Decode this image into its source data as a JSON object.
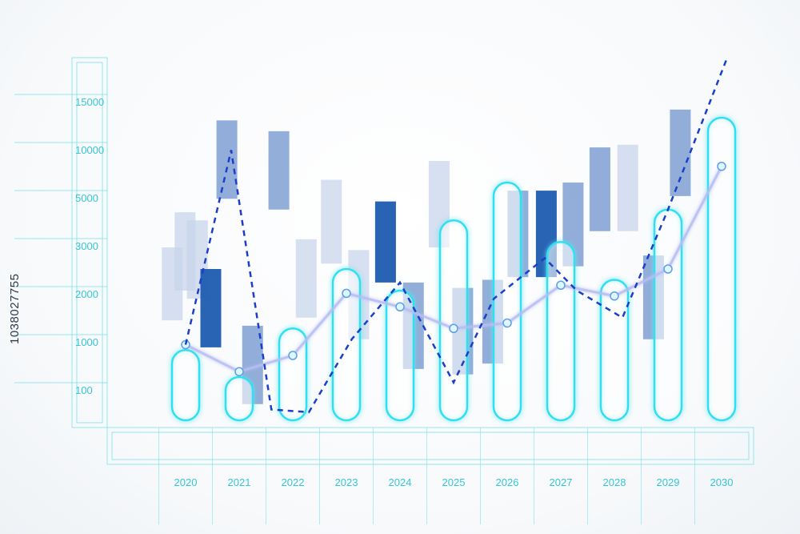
{
  "stock_id": "1038027755",
  "colors": {
    "axis": "#35c6d8",
    "frame": "#7fe3ee",
    "capsule": "#2fe0f0",
    "trend_line": "#b7bdf2",
    "dashed_line": "#1b3fc9",
    "candle_dark": "#1d5bb0",
    "candle_mid": "#6f93cc",
    "candle_light": "#c5d3ea"
  },
  "chart_data": {
    "type": "bar",
    "y_tick_labels": [
      "15000",
      "10000",
      "5000",
      "3000",
      "2000",
      "1000",
      "100"
    ],
    "categories": [
      "2020",
      "2021",
      "2022",
      "2023",
      "2024",
      "2025",
      "2026",
      "2027",
      "2028",
      "2029",
      "2030"
    ],
    "capsule_values": [
      1300,
      800,
      1700,
      2800,
      2400,
      3700,
      4400,
      3300,
      2600,
      3900,
      5600
    ],
    "trend_points": [
      1400,
      900,
      1200,
      2350,
      2100,
      1700,
      1800,
      2500,
      2300,
      2800,
      4700
    ],
    "dashed_points": [
      {
        "x": 2020,
        "y": 1400
      },
      {
        "x": 2020.85,
        "y": 5000
      },
      {
        "x": 2021.6,
        "y": 200
      },
      {
        "x": 2022.3,
        "y": 150
      },
      {
        "x": 2023.1,
        "y": 1500
      },
      {
        "x": 2024.0,
        "y": 2550
      },
      {
        "x": 2025.0,
        "y": 700
      },
      {
        "x": 2025.75,
        "y": 2250
      },
      {
        "x": 2026.7,
        "y": 3000
      },
      {
        "x": 2027.3,
        "y": 2400
      },
      {
        "x": 2028.15,
        "y": 1900
      },
      {
        "x": 2029.0,
        "y": 3900
      },
      {
        "x": 2030.1,
        "y": 6700
      }
    ],
    "candles": [
      {
        "x": 2019.75,
        "low": 1850,
        "high": 3200,
        "shade": "light"
      },
      {
        "x": 2019.99,
        "low": 2400,
        "high": 3850,
        "shade": "light"
      },
      {
        "x": 2020.22,
        "low": 2250,
        "high": 3700,
        "shade": "light"
      },
      {
        "x": 2020.47,
        "low": 1350,
        "high": 2800,
        "shade": "dark"
      },
      {
        "x": 2020.77,
        "low": 4100,
        "high": 5550,
        "shade": "mid"
      },
      {
        "x": 2021.25,
        "low": 300,
        "high": 1750,
        "shade": "mid"
      },
      {
        "x": 2021.74,
        "low": 3900,
        "high": 5350,
        "shade": "mid"
      },
      {
        "x": 2022.25,
        "low": 1900,
        "high": 3350,
        "shade": "light"
      },
      {
        "x": 2022.72,
        "low": 2900,
        "high": 4450,
        "shade": "light"
      },
      {
        "x": 2023.23,
        "low": 1500,
        "high": 3150,
        "shade": "light"
      },
      {
        "x": 2023.73,
        "low": 2550,
        "high": 4050,
        "shade": "dark"
      },
      {
        "x": 2024.25,
        "low": 950,
        "high": 2550,
        "shade": "mid"
      },
      {
        "x": 2024.73,
        "low": 3200,
        "high": 4800,
        "shade": "light"
      },
      {
        "x": 2025.17,
        "low": 850,
        "high": 2450,
        "shade": "mid"
      },
      {
        "x": 2025.73,
        "low": 1050,
        "high": 2600,
        "shade": "mid"
      },
      {
        "x": 2026.2,
        "low": 2650,
        "high": 4250,
        "shade": "mid"
      },
      {
        "x": 2026.73,
        "low": 2650,
        "high": 4250,
        "shade": "dark"
      },
      {
        "x": 2027.23,
        "low": 2850,
        "high": 4400,
        "shade": "mid"
      },
      {
        "x": 2027.73,
        "low": 3500,
        "high": 5050,
        "shade": "mid"
      },
      {
        "x": 2028.25,
        "low": 3500,
        "high": 5100,
        "shade": "light"
      },
      {
        "x": 2028.73,
        "low": 1500,
        "high": 3050,
        "shade": "mid"
      },
      {
        "x": 2029.23,
        "low": 4150,
        "high": 5750,
        "shade": "mid"
      }
    ],
    "grid": false,
    "legend": "none"
  }
}
